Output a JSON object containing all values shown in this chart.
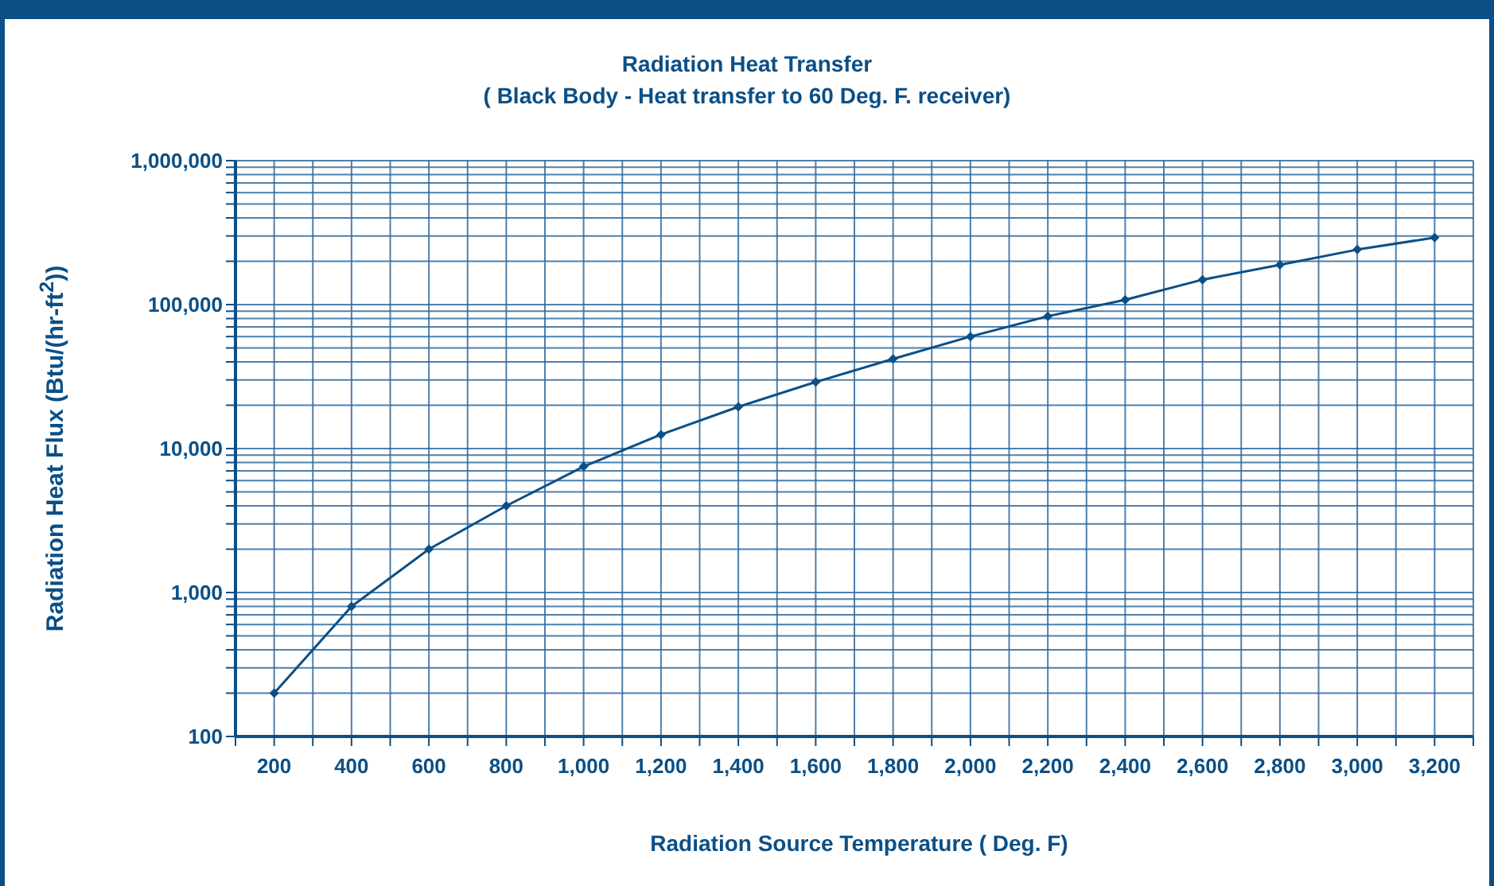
{
  "chart_data": {
    "type": "line",
    "title": "Radiation Heat Transfer",
    "subtitle": "( Black Body - Heat transfer to 60 Deg. F. receiver)",
    "xlabel": "Radiation Source Temperature ( Deg. F)",
    "ylabel": "Radiation Heat Flux (Btu/(hr-ft$^{2}$))",
    "x": [
      200,
      400,
      600,
      800,
      1000,
      1200,
      1400,
      1600,
      1800,
      2000,
      2200,
      2400,
      2600,
      2800,
      3000,
      3200
    ],
    "series": [
      {
        "color": "#0b4f86",
        "values": [
          200,
          800,
          2000,
          4000,
          7500,
          12500,
          19500,
          29000,
          42000,
          60000,
          83000,
          108000,
          149000,
          189000,
          241000,
          292000
        ]
      }
    ],
    "xlim": [
      100,
      3300
    ],
    "xticks": [
      {
        "value": 100,
        "label": null
      },
      200,
      {
        "value": 300,
        "label": null
      },
      {
        "value": 400,
        "label": "400"
      },
      {
        "value": 500,
        "label": null
      },
      {
        "value": 600,
        "label": "600"
      },
      {
        "value": 700,
        "label": null
      },
      {
        "value": 800,
        "label": "800"
      },
      {
        "value": 900,
        "label": null
      },
      {
        "value": 1000,
        "label": "1,000"
      },
      {
        "value": 1100,
        "label": null
      },
      {
        "value": 1200,
        "label": "1,200"
      },
      {
        "value": 1300,
        "label": null
      },
      {
        "value": 1400,
        "label": "1,400"
      },
      {
        "value": 1500,
        "label": null
      },
      {
        "value": 1600,
        "label": "1,600"
      },
      {
        "value": 1700,
        "label": null
      },
      {
        "value": 1800,
        "label": "1,800"
      },
      {
        "value": 1900,
        "label": null
      },
      {
        "value": 2000,
        "label": "2,000"
      },
      {
        "value": 2100,
        "label": null
      },
      {
        "value": 2200,
        "label": "2,200"
      },
      {
        "value": 2300,
        "label": null
      },
      {
        "value": 2400,
        "label": "2,400"
      },
      {
        "value": 2500,
        "label": null
      },
      {
        "value": 2600,
        "label": "2,600"
      },
      {
        "value": 2700,
        "label": null
      },
      {
        "value": 2800,
        "label": "2,800"
      },
      {
        "value": 2900,
        "label": null
      },
      {
        "value": 3000,
        "label": "3,000"
      },
      {
        "value": 3100,
        "label": null
      },
      {
        "value": 3200,
        "label": "3,200"
      },
      {
        "value": 3300,
        "label": null
      }
    ],
    "ylim": [
      100,
      1000000
    ],
    "yticks": [
      100,
      {
        "value": 200,
        "label": null
      },
      {
        "value": 300,
        "label": null
      },
      {
        "value": 400,
        "label": null
      },
      {
        "value": 500,
        "label": null
      },
      {
        "value": 600,
        "label": null
      },
      {
        "value": 700,
        "label": null
      },
      {
        "value": 800,
        "label": null
      },
      {
        "value": 900,
        "label": null
      },
      {
        "value": 1000,
        "label": "1,000"
      },
      {
        "value": 2000,
        "label": null
      },
      {
        "value": 3000,
        "label": null
      },
      {
        "value": 4000,
        "label": null
      },
      {
        "value": 5000,
        "label": null
      },
      {
        "value": 6000,
        "label": null
      },
      {
        "value": 7000,
        "label": null
      },
      {
        "value": 8000,
        "label": null
      },
      {
        "value": 9000,
        "label": null
      },
      {
        "value": 10000,
        "label": "10,000"
      },
      {
        "value": 20000,
        "label": null
      },
      {
        "value": 30000,
        "label": null
      },
      {
        "value": 40000,
        "label": null
      },
      {
        "value": 50000,
        "label": null
      },
      {
        "value": 60000,
        "label": null
      },
      {
        "value": 70000,
        "label": null
      },
      {
        "value": 80000,
        "label": null
      },
      {
        "value": 90000,
        "label": null
      },
      {
        "value": 100000,
        "label": "100,000"
      },
      {
        "value": 200000,
        "label": null
      },
      {
        "value": 300000,
        "label": null
      },
      {
        "value": 400000,
        "label": null
      },
      {
        "value": 500000,
        "label": null
      },
      {
        "value": 600000,
        "label": null
      },
      {
        "value": 700000,
        "label": null
      },
      {
        "value": 800000,
        "label": null
      },
      {
        "value": 900000,
        "label": null
      },
      {
        "value": 1000000,
        "label": "1,000,000"
      }
    ],
    "log": true,
    "grid": true,
    "marker": "diamond",
    "line_style": "solid"
  }
}
